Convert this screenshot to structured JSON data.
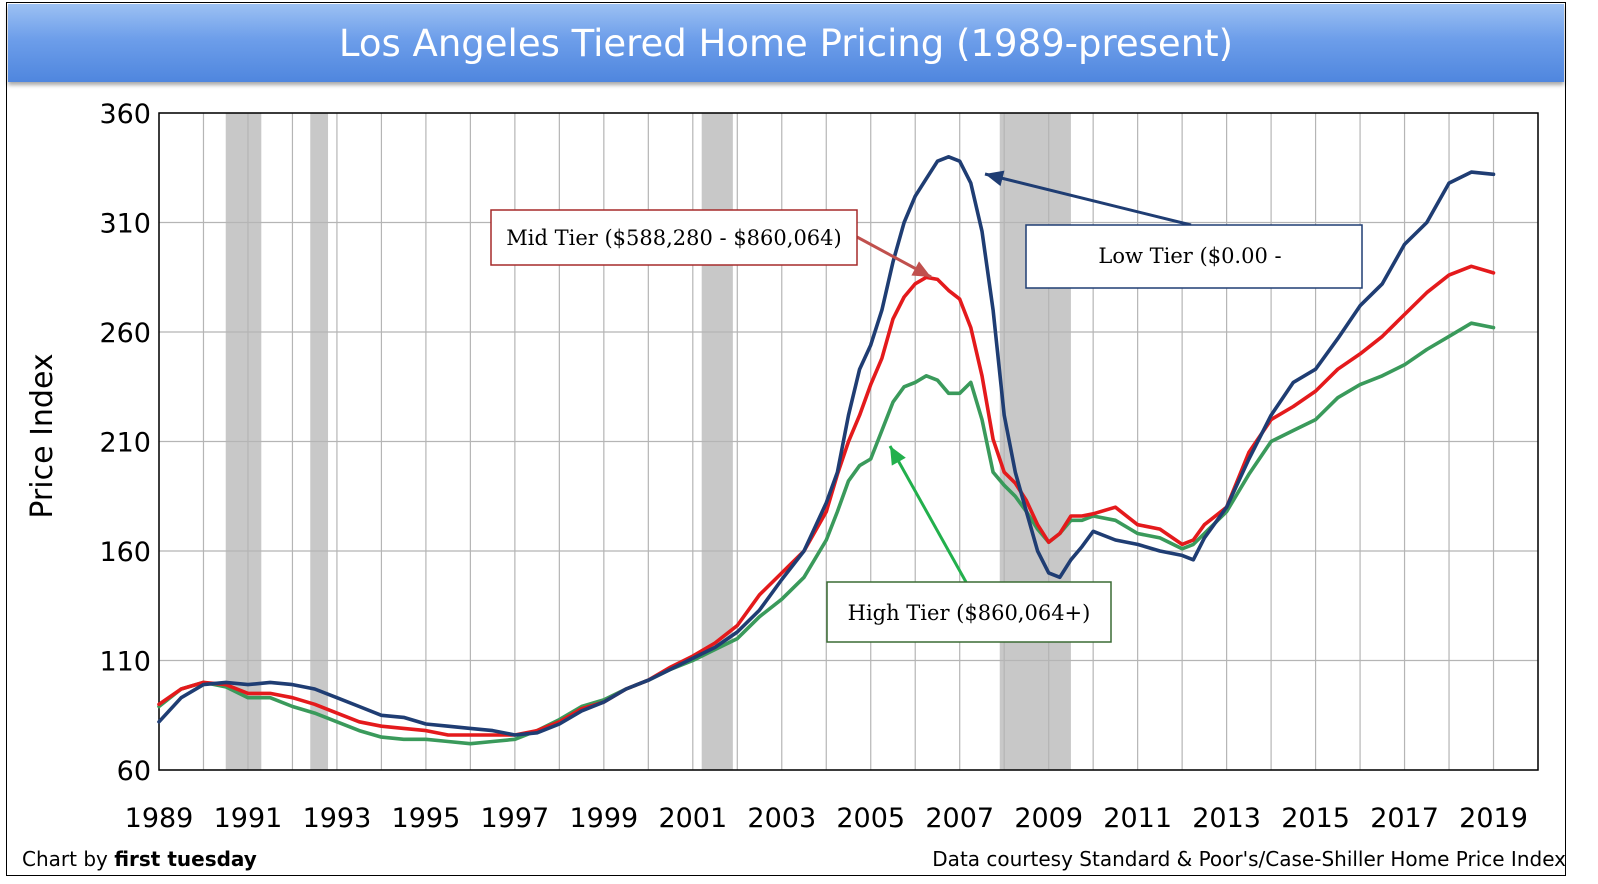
{
  "chart_data": {
    "type": "line",
    "title": "Los Angeles Tiered Home Pricing (1989-present)",
    "xlabel": "",
    "ylabel": "Price Index",
    "xlim": [
      1989,
      2020
    ],
    "ylim": [
      60,
      360
    ],
    "x_ticks": [
      "1989",
      "1991",
      "1993",
      "1995",
      "1997",
      "1999",
      "2001",
      "2003",
      "2005",
      "2007",
      "2009",
      "2011",
      "2013",
      "2015",
      "2017",
      "2019"
    ],
    "y_ticks": [
      "60",
      "110",
      "160",
      "210",
      "260",
      "310",
      "360"
    ],
    "grid": true,
    "recession_bands": [
      [
        1990.5,
        1991.3
      ],
      [
        1992.4,
        1992.8
      ],
      [
        2001.2,
        2001.9
      ],
      [
        2007.9,
        2009.5
      ]
    ],
    "series": [
      {
        "name": "Low Tier ($0.00 -",
        "color": "#1f3d73",
        "x": [
          1989,
          1989.5,
          1990,
          1990.5,
          1991,
          1991.5,
          1992,
          1992.5,
          1993,
          1993.5,
          1994,
          1994.5,
          1995,
          1995.5,
          1996,
          1996.5,
          1997,
          1997.5,
          1998,
          1998.5,
          1999,
          1999.5,
          2000,
          2000.5,
          2001,
          2001.5,
          2002,
          2002.5,
          2003,
          2003.5,
          2004,
          2004.25,
          2004.5,
          2004.75,
          2005,
          2005.25,
          2005.5,
          2005.75,
          2006,
          2006.25,
          2006.5,
          2006.75,
          2007,
          2007.25,
          2007.5,
          2007.75,
          2008,
          2008.25,
          2008.5,
          2008.75,
          2009,
          2009.25,
          2009.5,
          2009.75,
          2010,
          2010.5,
          2011,
          2011.5,
          2012,
          2012.25,
          2012.5,
          2013,
          2013.5,
          2014,
          2014.5,
          2015,
          2015.5,
          2016,
          2016.5,
          2017,
          2017.5,
          2018,
          2018.5,
          2019
        ],
        "values": [
          82,
          93,
          99,
          100,
          99,
          100,
          99,
          97,
          93,
          89,
          85,
          84,
          81,
          80,
          79,
          78,
          76,
          77,
          81,
          87,
          91,
          97,
          101,
          106,
          111,
          116,
          123,
          133,
          147,
          160,
          182,
          196,
          222,
          243,
          254,
          270,
          292,
          310,
          322,
          330,
          338,
          340,
          338,
          328,
          306,
          270,
          222,
          196,
          178,
          160,
          150,
          148,
          156,
          162,
          169,
          165,
          163,
          160,
          158,
          156,
          166,
          180,
          202,
          222,
          237,
          243,
          257,
          272,
          282,
          300,
          310,
          328,
          333,
          332
        ]
      },
      {
        "name": "Mid Tier ($588,280 - $860,064)",
        "color": "#e41a1c",
        "x": [
          1989,
          1989.5,
          1990,
          1990.5,
          1991,
          1991.5,
          1992,
          1992.5,
          1993,
          1993.5,
          1994,
          1994.5,
          1995,
          1995.5,
          1996,
          1996.5,
          1997,
          1997.5,
          1998,
          1998.5,
          1999,
          1999.5,
          2000,
          2000.5,
          2001,
          2001.5,
          2002,
          2002.5,
          2003,
          2003.5,
          2004,
          2004.25,
          2004.5,
          2004.75,
          2005,
          2005.25,
          2005.5,
          2005.75,
          2006,
          2006.25,
          2006.5,
          2006.75,
          2007,
          2007.25,
          2007.5,
          2007.75,
          2008,
          2008.25,
          2008.5,
          2008.75,
          2009,
          2009.25,
          2009.5,
          2009.75,
          2010,
          2010.5,
          2011,
          2011.5,
          2012,
          2012.25,
          2012.5,
          2013,
          2013.5,
          2014,
          2014.5,
          2015,
          2015.5,
          2016,
          2016.5,
          2017,
          2017.5,
          2018,
          2018.5,
          2019
        ],
        "values": [
          90,
          97,
          100,
          99,
          95,
          95,
          93,
          90,
          86,
          82,
          80,
          79,
          78,
          76,
          76,
          76,
          76,
          78,
          82,
          88,
          91,
          97,
          101,
          107,
          112,
          118,
          126,
          140,
          150,
          160,
          178,
          195,
          210,
          222,
          236,
          248,
          266,
          276,
          282,
          285,
          284,
          279,
          275,
          262,
          240,
          211,
          196,
          191,
          183,
          172,
          164,
          168,
          176,
          176,
          177,
          180,
          172,
          170,
          163,
          165,
          172,
          180,
          205,
          220,
          226,
          233,
          243,
          250,
          258,
          268,
          278,
          286,
          290,
          287
        ]
      },
      {
        "name": "High Tier ($860,064+)",
        "color": "#3a9a5b",
        "x": [
          1989,
          1989.5,
          1990,
          1990.5,
          1991,
          1991.5,
          1992,
          1992.5,
          1993,
          1993.5,
          1994,
          1994.5,
          1995,
          1995.5,
          1996,
          1996.5,
          1997,
          1997.5,
          1998,
          1998.5,
          1999,
          1999.5,
          2000,
          2000.5,
          2001,
          2001.5,
          2002,
          2002.5,
          2003,
          2003.5,
          2004,
          2004.25,
          2004.5,
          2004.75,
          2005,
          2005.25,
          2005.5,
          2005.75,
          2006,
          2006.25,
          2006.5,
          2006.75,
          2007,
          2007.25,
          2007.5,
          2007.75,
          2008,
          2008.25,
          2008.5,
          2008.75,
          2009,
          2009.25,
          2009.5,
          2009.75,
          2010,
          2010.5,
          2011,
          2011.5,
          2012,
          2012.25,
          2012.5,
          2013,
          2013.5,
          2014,
          2014.5,
          2015,
          2015.5,
          2016,
          2016.5,
          2017,
          2017.5,
          2018,
          2018.5,
          2019
        ],
        "values": [
          89,
          97,
          100,
          98,
          93,
          93,
          89,
          86,
          82,
          78,
          75,
          74,
          74,
          73,
          72,
          73,
          74,
          78,
          83,
          89,
          92,
          97,
          101,
          106,
          110,
          115,
          120,
          130,
          138,
          148,
          165,
          178,
          192,
          199,
          202,
          215,
          228,
          235,
          237,
          240,
          238,
          232,
          232,
          237,
          220,
          196,
          190,
          185,
          178,
          170,
          164,
          168,
          174,
          174,
          176,
          174,
          168,
          166,
          161,
          163,
          168,
          178,
          195,
          210,
          215,
          220,
          230,
          236,
          240,
          245,
          252,
          258,
          264,
          262
        ]
      }
    ],
    "annotations": [
      {
        "text": "Mid Tier ($588,280 - $860,064)",
        "border": "#a52a2a",
        "arrow": "#c0504d"
      },
      {
        "text": "Low Tier ($0.00 -",
        "border": "#1f3d73",
        "arrow": "#1f3d73"
      },
      {
        "text": "High Tier ($860,064+)",
        "border": "#3a6b34",
        "arrow": "#22b04c"
      }
    ],
    "footer_left_prefix": "Chart by ",
    "footer_left_brand": "first tuesday",
    "footer_right": "Data courtesy Standard & Poor's/Case-Shiller Home Price Index"
  }
}
